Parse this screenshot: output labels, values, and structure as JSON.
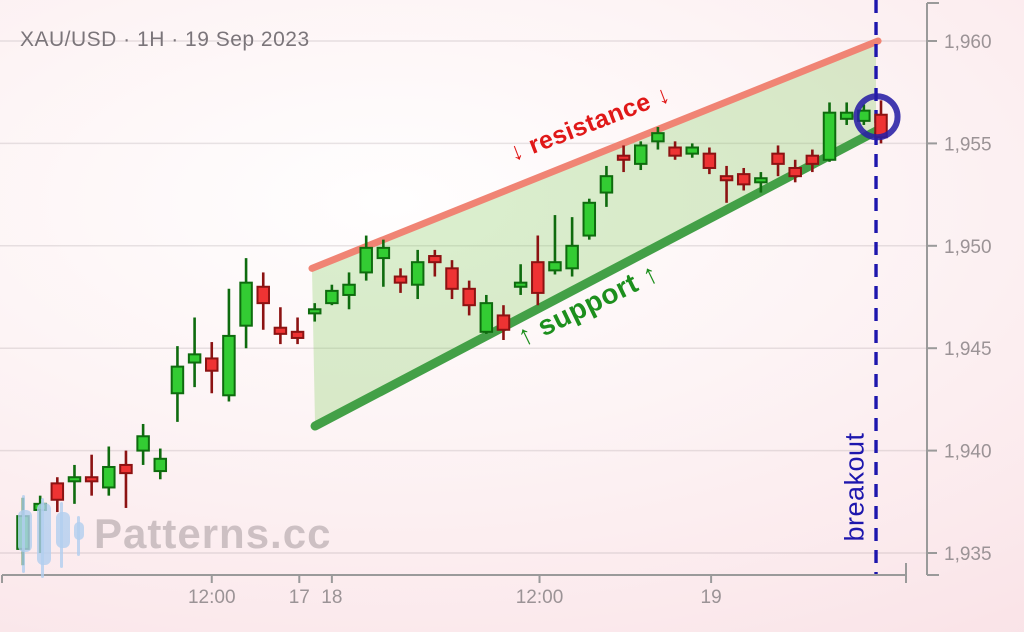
{
  "header": {
    "title": "XAU/USD · 1H · 19 Sep 2023"
  },
  "watermark": {
    "brand": "Patterns.cc",
    "logo_icon": "candlestick-logo"
  },
  "labels": {
    "resistance": "↓ resistance ↓",
    "support": "↑ support ↑",
    "breakout": "breakout"
  },
  "colors": {
    "bull_fill": "#33cc33",
    "bull_stroke": "#0e6b0e",
    "bear_fill": "#ee3333",
    "bear_stroke": "#8c1212",
    "resistance_line": "#f08474",
    "support_line": "#43a047",
    "channel_fill": "rgba(121,202,82,0.28)",
    "breakout_blue": "#1d16ad",
    "circle_blue": "rgba(40,31,165,0.88)",
    "axis": "#9a9a9a",
    "tick_text": "#9b9396",
    "grid": "rgba(130,118,124,0.18)",
    "watermark_logo": "rgba(178,206,239,0.8)"
  },
  "chart_data": {
    "type": "candlestick",
    "symbol": "XAU/USD",
    "timeframe": "1H",
    "date": "19 Sep 2023",
    "pattern_name": "ascending channel breakout",
    "y_axis": {
      "ticks": [
        1960,
        1955,
        1950,
        1945,
        1940,
        1935
      ],
      "tick_labels": [
        "1,960",
        "1,955",
        "1,950",
        "1,945",
        "1,940",
        "1,935"
      ]
    },
    "x_axis": {
      "ticks": [
        {
          "index": 11.0,
          "label": "12:00"
        },
        {
          "index": 16.1,
          "label": "17"
        },
        {
          "index": 18.0,
          "label": "18"
        },
        {
          "index": 30.1,
          "label": "12:00"
        },
        {
          "index": 40.1,
          "label": "19"
        }
      ]
    },
    "candles_format": [
      "open",
      "high",
      "low",
      "close"
    ],
    "candles": [
      [
        1935.2,
        1937.7,
        1934.4,
        1936.8
      ],
      [
        1937.1,
        1937.8,
        1935.0,
        1937.4
      ],
      [
        1938.4,
        1938.7,
        1937.0,
        1937.6
      ],
      [
        1938.5,
        1939.3,
        1937.4,
        1938.7
      ],
      [
        1938.7,
        1939.8,
        1937.8,
        1938.5
      ],
      [
        1938.2,
        1940.2,
        1937.8,
        1939.2
      ],
      [
        1939.3,
        1940.0,
        1937.2,
        1938.9
      ],
      [
        1940.0,
        1941.3,
        1939.3,
        1940.7
      ],
      [
        1939.0,
        1940.1,
        1938.6,
        1939.6
      ],
      [
        1942.8,
        1945.1,
        1941.4,
        1944.1
      ],
      [
        1944.3,
        1946.5,
        1943.1,
        1944.7
      ],
      [
        1944.5,
        1945.3,
        1942.8,
        1943.9
      ],
      [
        1942.7,
        1947.9,
        1942.4,
        1945.6
      ],
      [
        1946.1,
        1949.4,
        1945.0,
        1948.2
      ],
      [
        1948.0,
        1948.7,
        1945.9,
        1947.2
      ],
      [
        1946.0,
        1947.0,
        1945.2,
        1945.7
      ],
      [
        1945.8,
        1946.5,
        1945.2,
        1945.5
      ],
      [
        1946.7,
        1947.2,
        1946.3,
        1946.9
      ],
      [
        1947.2,
        1948.1,
        1947.1,
        1947.8
      ],
      [
        1947.6,
        1948.7,
        1946.9,
        1948.1
      ],
      [
        1948.7,
        1950.5,
        1948.3,
        1949.9
      ],
      [
        1949.4,
        1950.3,
        1948.0,
        1949.9
      ],
      [
        1948.5,
        1948.9,
        1947.7,
        1948.2
      ],
      [
        1948.1,
        1949.8,
        1947.4,
        1949.2
      ],
      [
        1949.5,
        1949.8,
        1948.5,
        1949.2
      ],
      [
        1948.9,
        1949.3,
        1947.4,
        1947.9
      ],
      [
        1947.9,
        1948.3,
        1946.6,
        1947.1
      ],
      [
        1945.8,
        1947.6,
        1945.7,
        1947.2
      ],
      [
        1946.6,
        1947.1,
        1945.4,
        1945.9
      ],
      [
        1948.0,
        1949.1,
        1947.6,
        1948.2
      ],
      [
        1949.2,
        1950.5,
        1947.1,
        1947.7
      ],
      [
        1948.8,
        1951.5,
        1948.6,
        1949.2
      ],
      [
        1948.9,
        1951.4,
        1948.5,
        1950.0
      ],
      [
        1950.5,
        1952.3,
        1950.3,
        1952.1
      ],
      [
        1952.6,
        1953.9,
        1951.9,
        1953.4
      ],
      [
        1954.4,
        1954.9,
        1953.6,
        1954.2
      ],
      [
        1954.0,
        1955.1,
        1953.7,
        1954.9
      ],
      [
        1955.1,
        1955.8,
        1954.7,
        1955.5
      ],
      [
        1954.8,
        1955.1,
        1954.2,
        1954.4
      ],
      [
        1954.5,
        1955.0,
        1954.3,
        1954.8
      ],
      [
        1954.5,
        1954.8,
        1953.5,
        1953.8
      ],
      [
        1953.4,
        1953.9,
        1952.1,
        1953.2
      ],
      [
        1953.5,
        1953.8,
        1952.7,
        1953.0
      ],
      [
        1953.1,
        1953.6,
        1952.6,
        1953.3
      ],
      [
        1954.5,
        1954.9,
        1953.4,
        1954.0
      ],
      [
        1953.8,
        1954.2,
        1953.1,
        1953.4
      ],
      [
        1954.4,
        1954.7,
        1953.6,
        1954.0
      ],
      [
        1954.2,
        1957.0,
        1954.1,
        1956.5
      ],
      [
        1956.2,
        1957.0,
        1955.9,
        1956.5
      ],
      [
        1956.1,
        1956.9,
        1955.9,
        1956.6
      ],
      [
        1956.4,
        1957.1,
        1955.0,
        1955.3
      ]
    ],
    "pattern": {
      "resistance": {
        "from": {
          "index": 16.84,
          "price": 1948.9
        },
        "to": {
          "index": 49.83,
          "price": 1960.0
        }
      },
      "support": {
        "from": {
          "index": 17.02,
          "price": 1941.2
        },
        "to": {
          "index": 49.71,
          "price": 1955.6
        }
      },
      "breakout_line_index": 49.71,
      "breakout_marker": {
        "index": 49.77,
        "price": 1956.3
      }
    }
  }
}
